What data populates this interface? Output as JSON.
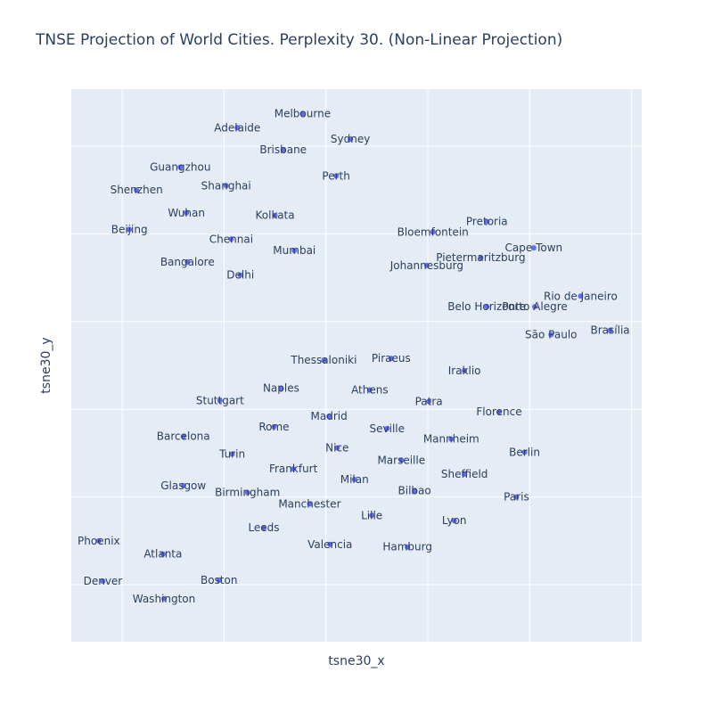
{
  "chart_data": {
    "type": "scatter",
    "title": "TNSE Projection of World Cities. Perplexity 30. (Non-Linear Projection)",
    "xlabel": "tsne30_x",
    "ylabel": "tsne30_y",
    "xlim": [
      -25.0,
      31.0
    ],
    "ylim": [
      -31.5,
      31.5
    ],
    "grid": true,
    "legend": false,
    "tick_labels_shown": false,
    "colors": {
      "marker": "#636efa",
      "plot_bg": "#e5ecf6",
      "text": "#2a3f5f"
    },
    "points": [
      {
        "label": "Melbourne",
        "x": -2.3,
        "y": 28.7
      },
      {
        "label": "Adelaide",
        "x": -8.7,
        "y": 27.1
      },
      {
        "label": "Sydney",
        "x": 2.4,
        "y": 25.8
      },
      {
        "label": "Brisbane",
        "x": -4.2,
        "y": 24.6
      },
      {
        "label": "Guangzhou",
        "x": -14.3,
        "y": 22.6
      },
      {
        "label": "Shanghai",
        "x": -9.8,
        "y": 20.5
      },
      {
        "label": "Perth",
        "x": 1.0,
        "y": 21.6
      },
      {
        "label": "Shenzhen",
        "x": -18.6,
        "y": 20.0
      },
      {
        "label": "Wuhan",
        "x": -13.7,
        "y": 17.4
      },
      {
        "label": "Kolkata",
        "x": -5.0,
        "y": 17.1
      },
      {
        "label": "Beijing",
        "x": -19.3,
        "y": 15.5
      },
      {
        "label": "Chennai",
        "x": -9.3,
        "y": 14.4
      },
      {
        "label": "Mumbai",
        "x": -3.1,
        "y": 13.1
      },
      {
        "label": "Bangalore",
        "x": -13.6,
        "y": 11.8
      },
      {
        "label": "Delhi",
        "x": -8.4,
        "y": 10.3
      },
      {
        "label": "Pretoria",
        "x": 15.8,
        "y": 16.4
      },
      {
        "label": "Bloemfontein",
        "x": 10.5,
        "y": 15.2
      },
      {
        "label": "Cape Town",
        "x": 20.4,
        "y": 13.4
      },
      {
        "label": "Pietermaritzburg",
        "x": 15.2,
        "y": 12.3
      },
      {
        "label": "Johannesburg",
        "x": 9.9,
        "y": 11.4
      },
      {
        "label": "Rio de Janeiro",
        "x": 25.0,
        "y": 7.9
      },
      {
        "label": "Belo Horizonte",
        "x": 15.8,
        "y": 6.7
      },
      {
        "label": "Porto Alegre",
        "x": 20.5,
        "y": 6.7
      },
      {
        "label": "São Paulo",
        "x": 22.1,
        "y": 3.5
      },
      {
        "label": "Brasília",
        "x": 27.9,
        "y": 4.0
      },
      {
        "label": "Thessaloniki",
        "x": -0.2,
        "y": 0.6
      },
      {
        "label": "Piraeus",
        "x": 6.4,
        "y": 0.8
      },
      {
        "label": "Iraklio",
        "x": 13.6,
        "y": -0.6
      },
      {
        "label": "Athens",
        "x": 4.3,
        "y": -2.8
      },
      {
        "label": "Naples",
        "x": -4.4,
        "y": -2.6
      },
      {
        "label": "Stuttgart",
        "x": -10.4,
        "y": -4.0
      },
      {
        "label": "Patra",
        "x": 10.1,
        "y": -4.1
      },
      {
        "label": "Florence",
        "x": 17.0,
        "y": -5.3
      },
      {
        "label": "Madrid",
        "x": 0.3,
        "y": -5.8
      },
      {
        "label": "Rome",
        "x": -5.1,
        "y": -7.0
      },
      {
        "label": "Seville",
        "x": 6.0,
        "y": -7.2
      },
      {
        "label": "Mannheim",
        "x": 12.3,
        "y": -8.4
      },
      {
        "label": "Barcelona",
        "x": -14.0,
        "y": -8.1
      },
      {
        "label": "Nice",
        "x": 1.1,
        "y": -9.4
      },
      {
        "label": "Berlin",
        "x": 19.5,
        "y": -9.9
      },
      {
        "label": "Turin",
        "x": -9.2,
        "y": -10.1
      },
      {
        "label": "Marseille",
        "x": 7.4,
        "y": -10.8
      },
      {
        "label": "Frankfurt",
        "x": -3.2,
        "y": -11.8
      },
      {
        "label": "Sheffield",
        "x": 13.6,
        "y": -12.4
      },
      {
        "label": "Milan",
        "x": 2.8,
        "y": -13.0
      },
      {
        "label": "Glasgow",
        "x": -14.0,
        "y": -13.7
      },
      {
        "label": "Birmingham",
        "x": -7.7,
        "y": -14.5
      },
      {
        "label": "Bilbao",
        "x": 8.7,
        "y": -14.3
      },
      {
        "label": "Paris",
        "x": 18.7,
        "y": -15.0
      },
      {
        "label": "Manchester",
        "x": -1.6,
        "y": -15.8
      },
      {
        "label": "Lille",
        "x": 4.5,
        "y": -17.1
      },
      {
        "label": "Lyon",
        "x": 12.6,
        "y": -17.7
      },
      {
        "label": "Leeds",
        "x": -6.1,
        "y": -18.5
      },
      {
        "label": "Phoenix",
        "x": -22.3,
        "y": -20.0
      },
      {
        "label": "Valencia",
        "x": 0.4,
        "y": -20.4
      },
      {
        "label": "Hamburg",
        "x": 8.0,
        "y": -20.7
      },
      {
        "label": "Atlanta",
        "x": -16.0,
        "y": -21.5
      },
      {
        "label": "Denver",
        "x": -21.9,
        "y": -24.6
      },
      {
        "label": "Boston",
        "x": -10.5,
        "y": -24.5
      },
      {
        "label": "Washington",
        "x": -15.9,
        "y": -26.6
      }
    ]
  }
}
